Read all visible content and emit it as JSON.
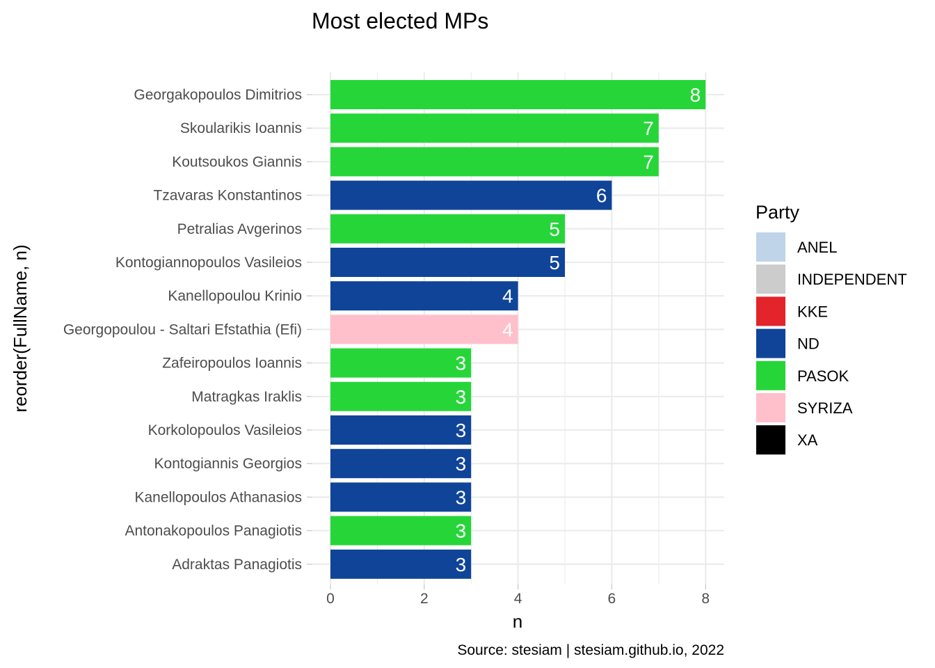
{
  "chart_data": {
    "type": "bar",
    "orientation": "horizontal",
    "title": "Most elected MPs",
    "xlabel": "n",
    "ylabel": "reorder(FullName, n)",
    "caption": "Source: stesiam | stesiam.github.io, 2022",
    "xlim": [
      0,
      8
    ],
    "x_ticks": [
      0,
      2,
      4,
      6,
      8
    ],
    "grid": true,
    "legend": {
      "title": "Party",
      "position": "right",
      "entries": [
        {
          "label": "ANEL",
          "color": "#bfd3e9"
        },
        {
          "label": "INDEPENDENT",
          "color": "#cccccc"
        },
        {
          "label": "KKE",
          "color": "#e3242b"
        },
        {
          "label": "ND",
          "color": "#0f4498"
        },
        {
          "label": "PASOK",
          "color": "#26d639"
        },
        {
          "label": "SYRIZA",
          "color": "#ffc0cb"
        },
        {
          "label": "XA",
          "color": "#000000"
        }
      ]
    },
    "categories": [
      "Georgakopoulos Dimitrios",
      "Skoularikis Ioannis",
      "Koutsoukos Giannis",
      "Tzavaras Konstantinos",
      "Petralias Avgerinos",
      "Kontogiannopoulos Vasileios",
      "Kanellopoulou Krinio",
      "Georgopoulou - Saltari Efstathia (Efi)",
      "Zafeiropoulos Ioannis",
      "Matragkas Iraklis",
      "Korkolopoulos Vasileios",
      "Kontogiannis Georgios",
      "Kanellopoulos Athanasios",
      "Antonakopoulos Panagiotis",
      "Adraktas Panagiotis"
    ],
    "values": [
      8,
      7,
      7,
      6,
      5,
      5,
      4,
      4,
      3,
      3,
      3,
      3,
      3,
      3,
      3
    ],
    "party": [
      "PASOK",
      "PASOK",
      "PASOK",
      "ND",
      "PASOK",
      "ND",
      "ND",
      "SYRIZA",
      "PASOK",
      "PASOK",
      "ND",
      "ND",
      "ND",
      "PASOK",
      "ND"
    ]
  }
}
